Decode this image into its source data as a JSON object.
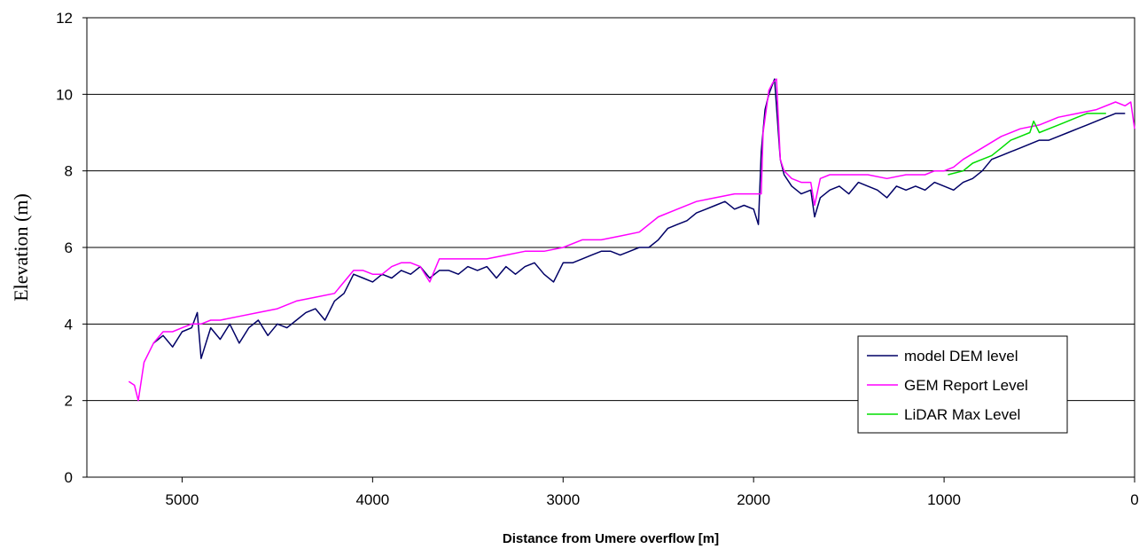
{
  "chart_data": {
    "type": "line",
    "title": "",
    "xlabel": "Distance from Umere overflow [m]",
    "ylabel": "Elevation (m)",
    "x_reversed": true,
    "xlim": [
      0,
      5500
    ],
    "ylim": [
      0,
      12
    ],
    "x_ticks": [
      5000,
      4000,
      3000,
      2000,
      1000,
      0
    ],
    "y_ticks": [
      0,
      2,
      4,
      6,
      8,
      10,
      12
    ],
    "grid": "horizontal",
    "legend_position": "bottom-right",
    "series": [
      {
        "name": "model DEM level",
        "color": "#000066",
        "points": [
          [
            5150,
            3.5
          ],
          [
            5100,
            3.7
          ],
          [
            5050,
            3.4
          ],
          [
            5000,
            3.8
          ],
          [
            4950,
            3.9
          ],
          [
            4920,
            4.3
          ],
          [
            4900,
            3.1
          ],
          [
            4850,
            3.9
          ],
          [
            4800,
            3.6
          ],
          [
            4750,
            4.0
          ],
          [
            4700,
            3.5
          ],
          [
            4650,
            3.9
          ],
          [
            4600,
            4.1
          ],
          [
            4550,
            3.7
          ],
          [
            4500,
            4.0
          ],
          [
            4450,
            3.9
          ],
          [
            4400,
            4.1
          ],
          [
            4350,
            4.3
          ],
          [
            4300,
            4.4
          ],
          [
            4250,
            4.1
          ],
          [
            4200,
            4.6
          ],
          [
            4150,
            4.8
          ],
          [
            4100,
            5.3
          ],
          [
            4050,
            5.2
          ],
          [
            4000,
            5.1
          ],
          [
            3950,
            5.3
          ],
          [
            3900,
            5.2
          ],
          [
            3850,
            5.4
          ],
          [
            3800,
            5.3
          ],
          [
            3750,
            5.5
          ],
          [
            3700,
            5.2
          ],
          [
            3650,
            5.4
          ],
          [
            3600,
            5.4
          ],
          [
            3550,
            5.3
          ],
          [
            3500,
            5.5
          ],
          [
            3450,
            5.4
          ],
          [
            3400,
            5.5
          ],
          [
            3350,
            5.2
          ],
          [
            3300,
            5.5
          ],
          [
            3250,
            5.3
          ],
          [
            3200,
            5.5
          ],
          [
            3150,
            5.6
          ],
          [
            3100,
            5.3
          ],
          [
            3050,
            5.1
          ],
          [
            3000,
            5.6
          ],
          [
            2950,
            5.6
          ],
          [
            2900,
            5.7
          ],
          [
            2850,
            5.8
          ],
          [
            2800,
            5.9
          ],
          [
            2750,
            5.9
          ],
          [
            2700,
            5.8
          ],
          [
            2650,
            5.9
          ],
          [
            2600,
            6.0
          ],
          [
            2550,
            6.0
          ],
          [
            2500,
            6.2
          ],
          [
            2450,
            6.5
          ],
          [
            2400,
            6.6
          ],
          [
            2350,
            6.7
          ],
          [
            2300,
            6.9
          ],
          [
            2250,
            7.0
          ],
          [
            2200,
            7.1
          ],
          [
            2150,
            7.2
          ],
          [
            2100,
            7.0
          ],
          [
            2050,
            7.1
          ],
          [
            2000,
            7.0
          ],
          [
            1975,
            6.6
          ],
          [
            1960,
            8.5
          ],
          [
            1940,
            9.6
          ],
          [
            1920,
            10.0
          ],
          [
            1890,
            10.4
          ],
          [
            1860,
            8.3
          ],
          [
            1840,
            7.9
          ],
          [
            1800,
            7.6
          ],
          [
            1750,
            7.4
          ],
          [
            1700,
            7.5
          ],
          [
            1680,
            6.8
          ],
          [
            1650,
            7.3
          ],
          [
            1600,
            7.5
          ],
          [
            1550,
            7.6
          ],
          [
            1500,
            7.4
          ],
          [
            1450,
            7.7
          ],
          [
            1400,
            7.6
          ],
          [
            1350,
            7.5
          ],
          [
            1300,
            7.3
          ],
          [
            1250,
            7.6
          ],
          [
            1200,
            7.5
          ],
          [
            1150,
            7.6
          ],
          [
            1100,
            7.5
          ],
          [
            1050,
            7.7
          ],
          [
            1000,
            7.6
          ],
          [
            950,
            7.5
          ],
          [
            900,
            7.7
          ],
          [
            850,
            7.8
          ],
          [
            800,
            8.0
          ],
          [
            750,
            8.3
          ],
          [
            700,
            8.4
          ],
          [
            650,
            8.5
          ],
          [
            600,
            8.6
          ],
          [
            550,
            8.7
          ],
          [
            500,
            8.8
          ],
          [
            450,
            8.8
          ],
          [
            400,
            8.9
          ],
          [
            350,
            9.0
          ],
          [
            300,
            9.1
          ],
          [
            250,
            9.2
          ],
          [
            200,
            9.3
          ],
          [
            150,
            9.4
          ],
          [
            100,
            9.5
          ],
          [
            50,
            9.5
          ]
        ]
      },
      {
        "name": "GEM Report Level",
        "color": "#ff00ff",
        "points": [
          [
            5280,
            2.5
          ],
          [
            5250,
            2.4
          ],
          [
            5230,
            2.0
          ],
          [
            5200,
            3.0
          ],
          [
            5150,
            3.5
          ],
          [
            5100,
            3.8
          ],
          [
            5050,
            3.8
          ],
          [
            5000,
            3.9
          ],
          [
            4950,
            4.0
          ],
          [
            4900,
            4.0
          ],
          [
            4850,
            4.1
          ],
          [
            4800,
            4.1
          ],
          [
            4700,
            4.2
          ],
          [
            4600,
            4.3
          ],
          [
            4500,
            4.4
          ],
          [
            4400,
            4.6
          ],
          [
            4300,
            4.7
          ],
          [
            4200,
            4.8
          ],
          [
            4150,
            5.1
          ],
          [
            4100,
            5.4
          ],
          [
            4050,
            5.4
          ],
          [
            4000,
            5.3
          ],
          [
            3950,
            5.3
          ],
          [
            3900,
            5.5
          ],
          [
            3850,
            5.6
          ],
          [
            3800,
            5.6
          ],
          [
            3750,
            5.5
          ],
          [
            3700,
            5.1
          ],
          [
            3650,
            5.7
          ],
          [
            3600,
            5.7
          ],
          [
            3500,
            5.7
          ],
          [
            3400,
            5.7
          ],
          [
            3300,
            5.8
          ],
          [
            3200,
            5.9
          ],
          [
            3100,
            5.9
          ],
          [
            3000,
            6.0
          ],
          [
            2900,
            6.2
          ],
          [
            2800,
            6.2
          ],
          [
            2700,
            6.3
          ],
          [
            2600,
            6.4
          ],
          [
            2550,
            6.6
          ],
          [
            2500,
            6.8
          ],
          [
            2400,
            7.0
          ],
          [
            2300,
            7.2
          ],
          [
            2200,
            7.3
          ],
          [
            2100,
            7.4
          ],
          [
            2000,
            7.4
          ],
          [
            1960,
            7.4
          ],
          [
            1950,
            9.0
          ],
          [
            1920,
            10.1
          ],
          [
            1900,
            10.3
          ],
          [
            1880,
            10.4
          ],
          [
            1860,
            8.3
          ],
          [
            1840,
            8.0
          ],
          [
            1800,
            7.8
          ],
          [
            1750,
            7.7
          ],
          [
            1700,
            7.7
          ],
          [
            1680,
            7.1
          ],
          [
            1650,
            7.8
          ],
          [
            1600,
            7.9
          ],
          [
            1500,
            7.9
          ],
          [
            1400,
            7.9
          ],
          [
            1300,
            7.8
          ],
          [
            1200,
            7.9
          ],
          [
            1100,
            7.9
          ],
          [
            1050,
            8.0
          ],
          [
            1000,
            8.0
          ],
          [
            950,
            8.1
          ],
          [
            900,
            8.3
          ],
          [
            800,
            8.6
          ],
          [
            700,
            8.9
          ],
          [
            600,
            9.1
          ],
          [
            500,
            9.2
          ],
          [
            400,
            9.4
          ],
          [
            300,
            9.5
          ],
          [
            200,
            9.6
          ],
          [
            100,
            9.8
          ],
          [
            50,
            9.7
          ],
          [
            20,
            9.8
          ],
          [
            0,
            9.1
          ]
        ]
      },
      {
        "name": "LiDAR Max Level",
        "color": "#00dd00",
        "points": [
          [
            980,
            7.9
          ],
          [
            900,
            8.0
          ],
          [
            850,
            8.2
          ],
          [
            800,
            8.3
          ],
          [
            750,
            8.4
          ],
          [
            700,
            8.6
          ],
          [
            650,
            8.8
          ],
          [
            600,
            8.9
          ],
          [
            550,
            9.0
          ],
          [
            530,
            9.3
          ],
          [
            500,
            9.0
          ],
          [
            450,
            9.1
          ],
          [
            400,
            9.2
          ],
          [
            350,
            9.3
          ],
          [
            300,
            9.4
          ],
          [
            250,
            9.5
          ],
          [
            200,
            9.5
          ],
          [
            150,
            9.5
          ]
        ]
      }
    ]
  }
}
